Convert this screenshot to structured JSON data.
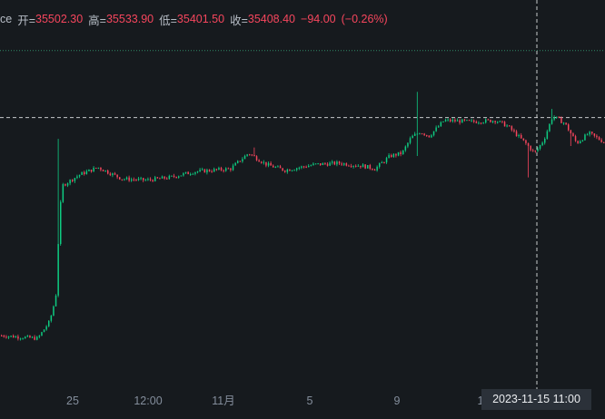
{
  "header": {
    "title_fragment": "ce",
    "open_label": "开=",
    "open_value": "35502.30",
    "high_label": "高=",
    "high_value": "35533.90",
    "low_label": "低=",
    "low_value": "35401.50",
    "close_label": "收=",
    "close_value": "35408.40",
    "change": "−94.00",
    "change_pct": "(−0.26%)"
  },
  "crosshair": {
    "time_label": "2023-11-15   11:00"
  },
  "colors": {
    "background": "#161a1e",
    "up": "#0ecb81",
    "down": "#f6465d",
    "axis_text": "#848e9c",
    "crosshair": "#e6e8ea",
    "dotted_line": "#2e8b67"
  },
  "chart_data": {
    "type": "candlestick",
    "title": "",
    "x_tick_labels": [
      "25",
      "12:00",
      "11月",
      "5",
      "9",
      "1"
    ],
    "x_tick_values": [
      "2023-10-25",
      "2023-10-26 12:00",
      "2023-11-01",
      "2023-11-05",
      "2023-11-09",
      "2023-11-13"
    ],
    "y_range": [
      33700,
      36150
    ],
    "grid": false,
    "crosshair_time": "2023-11-15 11:00",
    "last_close": 35408.4,
    "anchors": [
      {
        "t": 0.0,
        "p": 34050
      },
      {
        "t": 0.06,
        "p": 34030
      },
      {
        "t": 0.08,
        "p": 34150
      },
      {
        "t": 0.09,
        "p": 34320
      },
      {
        "t": 0.095,
        "p": 34780
      },
      {
        "t": 0.1,
        "p": 35100
      },
      {
        "t": 0.13,
        "p": 35180
      },
      {
        "t": 0.16,
        "p": 35230
      },
      {
        "t": 0.2,
        "p": 35150
      },
      {
        "t": 0.24,
        "p": 35140
      },
      {
        "t": 0.28,
        "p": 35160
      },
      {
        "t": 0.32,
        "p": 35200
      },
      {
        "t": 0.38,
        "p": 35220
      },
      {
        "t": 0.41,
        "p": 35330
      },
      {
        "t": 0.44,
        "p": 35250
      },
      {
        "t": 0.47,
        "p": 35210
      },
      {
        "t": 0.52,
        "p": 35250
      },
      {
        "t": 0.56,
        "p": 35260
      },
      {
        "t": 0.6,
        "p": 35240
      },
      {
        "t": 0.62,
        "p": 35220
      },
      {
        "t": 0.645,
        "p": 35310
      },
      {
        "t": 0.665,
        "p": 35330
      },
      {
        "t": 0.68,
        "p": 35440
      },
      {
        "t": 0.695,
        "p": 35480
      },
      {
        "t": 0.71,
        "p": 35450
      },
      {
        "t": 0.735,
        "p": 35560
      },
      {
        "t": 0.78,
        "p": 35550
      },
      {
        "t": 0.82,
        "p": 35560
      },
      {
        "t": 0.84,
        "p": 35520
      },
      {
        "t": 0.87,
        "p": 35400
      },
      {
        "t": 0.885,
        "p": 35330
      },
      {
        "t": 0.9,
        "p": 35420
      },
      {
        "t": 0.915,
        "p": 35590
      },
      {
        "t": 0.935,
        "p": 35540
      },
      {
        "t": 0.955,
        "p": 35400
      },
      {
        "t": 0.975,
        "p": 35470
      },
      {
        "t": 1.0,
        "p": 35408
      }
    ],
    "spikes": [
      {
        "t": 0.095,
        "high": 35430
      },
      {
        "t": 0.42,
        "high": 35370
      },
      {
        "t": 0.69,
        "high": 35760,
        "low": 35310
      },
      {
        "t": 0.875,
        "low": 35160
      },
      {
        "t": 0.915,
        "high": 35640
      },
      {
        "t": 0.947,
        "low": 35380
      }
    ]
  },
  "reference_lines": {
    "dotted_price": 36050,
    "dashed_price": 35580
  }
}
